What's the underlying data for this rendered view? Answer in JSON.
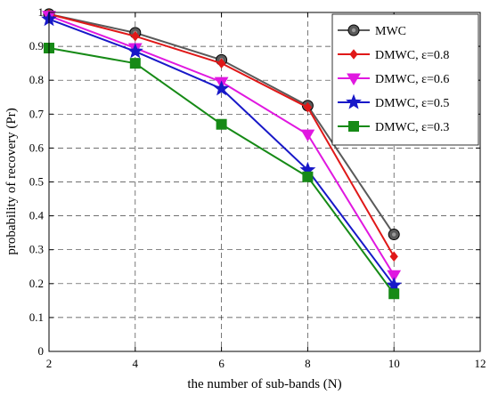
{
  "chart_data": {
    "type": "line",
    "xlabel": "the number of sub-bands (N)",
    "ylabel": "probability of recovery (Pr)",
    "xlim": [
      2,
      12
    ],
    "ylim": [
      0,
      1
    ],
    "xticks": [
      2,
      4,
      6,
      8,
      10,
      12
    ],
    "yticks": [
      0,
      0.1,
      0.2,
      0.3,
      0.4,
      0.5,
      0.6,
      0.7,
      0.8,
      0.9,
      1
    ],
    "xtick_labels": [
      "2",
      "4",
      "6",
      "8",
      "10",
      "12"
    ],
    "ytick_labels": [
      "0",
      "0.1",
      "0.2",
      "0.3",
      "0.4",
      "0.5",
      "0.6",
      "0.7",
      "0.8",
      "0.9",
      "1"
    ],
    "grid": true,
    "legend_position": "top-right",
    "x": [
      2,
      4,
      6,
      8,
      10
    ],
    "series": [
      {
        "name": "MWC",
        "values": [
          0.995,
          0.94,
          0.86,
          0.725,
          0.345
        ],
        "color": "#5a5a5a",
        "marker": "circle"
      },
      {
        "name": "DMWC, ε=0.8",
        "values": [
          0.995,
          0.93,
          0.85,
          0.72,
          0.28
        ],
        "color": "#e01818",
        "marker": "diamond"
      },
      {
        "name": "DMWC, ε=0.6",
        "values": [
          0.99,
          0.895,
          0.795,
          0.64,
          0.225
        ],
        "color": "#e018e0",
        "marker": "triangle-down"
      },
      {
        "name": "DMWC, ε=0.5",
        "values": [
          0.98,
          0.885,
          0.775,
          0.535,
          0.195
        ],
        "color": "#1818c8",
        "marker": "star"
      },
      {
        "name": "DMWC, ε=0.3",
        "values": [
          0.895,
          0.85,
          0.67,
          0.515,
          0.17
        ],
        "color": "#168a16",
        "marker": "square"
      }
    ]
  }
}
